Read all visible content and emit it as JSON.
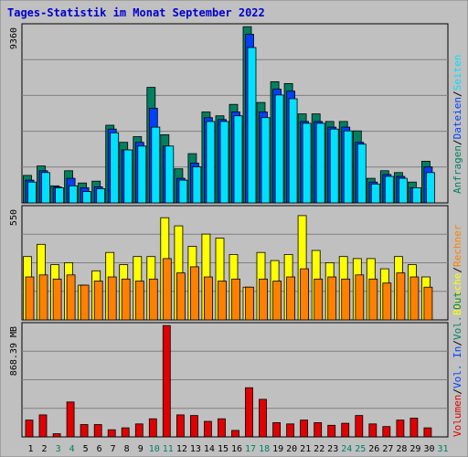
{
  "title": "Tages-Statistik im Monat September 2022",
  "colors": {
    "title": "#0000cc",
    "anfragen": "#008060",
    "dateien": "#0040ff",
    "seiten": "#00e0ff",
    "besuche": "#ffff00",
    "rechner": "#ff8000",
    "volumen": "#e00000",
    "weekend_label": "#008060",
    "day_label": "#000000",
    "panel_bg": "#c0c0c0",
    "grid": "#808080"
  },
  "legend": {
    "top": [
      "Anfragen",
      "Dateien",
      "Seiten"
    ],
    "middle": [
      "Besuche",
      "Rechner"
    ],
    "bottom": [
      "Volumen",
      "Vol. In",
      "Vol. Out"
    ]
  },
  "legend_separator": "/",
  "chart_data": [
    {
      "type": "bar",
      "panel": "top",
      "y_max_label": "9360",
      "ylim": [
        0,
        9360
      ],
      "categories": [
        "1",
        "2",
        "3",
        "4",
        "5",
        "6",
        "7",
        "8",
        "9",
        "10",
        "11",
        "12",
        "13",
        "14",
        "15",
        "16",
        "17",
        "18",
        "19",
        "20",
        "21",
        "22",
        "23",
        "24",
        "25",
        "26",
        "27",
        "28",
        "29",
        "30"
      ],
      "weekend_days": [
        "3",
        "4",
        "10",
        "11",
        "17",
        "18",
        "24",
        "25",
        "31"
      ],
      "series": [
        {
          "name": "Anfragen",
          "values": [
            1450,
            1950,
            900,
            1700,
            1050,
            1150,
            4100,
            3200,
            3500,
            6100,
            3600,
            1800,
            2600,
            4800,
            4600,
            5200,
            9300,
            5300,
            6400,
            6300,
            4700,
            4700,
            4300,
            4300,
            3800,
            1300,
            1700,
            1600,
            1100,
            2200
          ]
        },
        {
          "name": "Dateien",
          "values": [
            1200,
            1700,
            850,
            1300,
            800,
            850,
            3900,
            2800,
            3200,
            5000,
            3000,
            1300,
            2100,
            4500,
            4400,
            4800,
            8900,
            4800,
            6000,
            5900,
            4300,
            4300,
            4000,
            4000,
            3200,
            1100,
            1500,
            1400,
            800,
            1900
          ]
        },
        {
          "name": "Seiten",
          "values": [
            1100,
            1600,
            800,
            900,
            600,
            750,
            3700,
            2800,
            3000,
            4000,
            3000,
            1200,
            1900,
            4300,
            4300,
            4600,
            8200,
            4500,
            5700,
            5500,
            4200,
            4200,
            3900,
            3800,
            3100,
            1000,
            1400,
            1300,
            800,
            1600
          ]
        }
      ]
    },
    {
      "type": "bar",
      "panel": "middle",
      "y_max_label": "550",
      "ylim": [
        0,
        550
      ],
      "categories": [
        "1",
        "2",
        "3",
        "4",
        "5",
        "6",
        "7",
        "8",
        "9",
        "10",
        "11",
        "12",
        "13",
        "14",
        "15",
        "16",
        "17",
        "18",
        "19",
        "20",
        "21",
        "22",
        "23",
        "24",
        "25",
        "26",
        "27",
        "28",
        "29",
        "30"
      ],
      "series": [
        {
          "name": "Besuche",
          "values": [
            310,
            370,
            270,
            280,
            170,
            240,
            330,
            270,
            310,
            310,
            500,
            460,
            360,
            420,
            400,
            320,
            160,
            330,
            290,
            320,
            510,
            340,
            280,
            310,
            300,
            300,
            250,
            310,
            270,
            210
          ]
        },
        {
          "name": "Rechner",
          "values": [
            210,
            220,
            200,
            220,
            170,
            190,
            210,
            200,
            190,
            200,
            300,
            230,
            260,
            210,
            190,
            200,
            160,
            200,
            190,
            210,
            250,
            200,
            210,
            200,
            220,
            200,
            180,
            230,
            210,
            160
          ]
        }
      ]
    },
    {
      "type": "bar",
      "panel": "bottom",
      "y_max_label": "868.39 MB",
      "ylim": [
        0,
        868.39
      ],
      "categories": [
        "1",
        "2",
        "3",
        "4",
        "5",
        "6",
        "7",
        "8",
        "9",
        "10",
        "11",
        "12",
        "13",
        "14",
        "15",
        "16",
        "17",
        "18",
        "19",
        "20",
        "21",
        "22",
        "23",
        "24",
        "25",
        "26",
        "27",
        "28",
        "29",
        "30"
      ],
      "series": [
        {
          "name": "Volumen",
          "values": [
            130,
            170,
            25,
            270,
            95,
            95,
            55,
            70,
            100,
            140,
            860,
            170,
            165,
            120,
            140,
            50,
            380,
            290,
            110,
            100,
            130,
            110,
            90,
            105,
            165,
            100,
            80,
            130,
            145,
            70
          ]
        }
      ]
    }
  ],
  "x_axis_days": [
    "1",
    "2",
    "3",
    "4",
    "5",
    "6",
    "7",
    "8",
    "9",
    "10",
    "11",
    "12",
    "13",
    "14",
    "15",
    "16",
    "17",
    "18",
    "19",
    "20",
    "21",
    "22",
    "23",
    "24",
    "25",
    "26",
    "27",
    "28",
    "29",
    "30",
    "31"
  ]
}
